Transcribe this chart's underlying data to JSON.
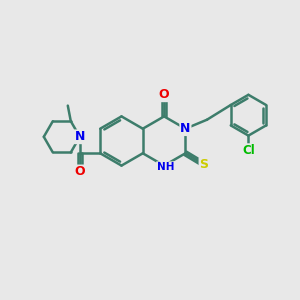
{
  "background_color": "#e8e8e8",
  "bond_color": "#3d7d6b",
  "bond_width": 1.8,
  "atom_colors": {
    "N": "#0000ee",
    "O": "#ee0000",
    "S": "#cccc00",
    "Cl": "#00bb00",
    "C": "#3d7d6b"
  },
  "figsize": [
    3.0,
    3.0
  ],
  "dpi": 100
}
